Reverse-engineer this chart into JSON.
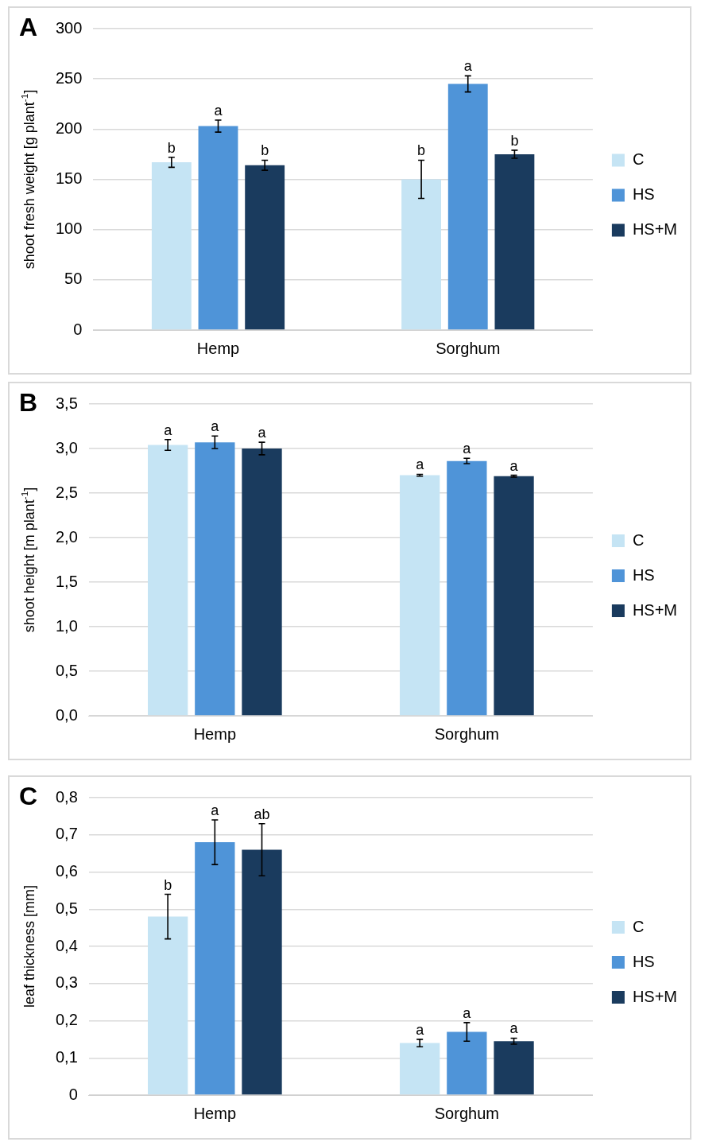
{
  "chart_data": [
    {
      "type": "bar",
      "title": "A",
      "ylabel": "shoot fresh weight [g plant$^{-1}$]",
      "categories": [
        "Hemp",
        "Sorghum"
      ],
      "ylim": [
        0,
        300
      ],
      "yticks": [
        0,
        50,
        100,
        150,
        200,
        250,
        300
      ],
      "grid": "y",
      "legend": "right",
      "series": [
        {
          "name": "C",
          "color": "#c5e4f4",
          "values": [
            167,
            150
          ],
          "errors": [
            5,
            19
          ],
          "value_labels": [
            "b",
            "b"
          ]
        },
        {
          "name": "HS",
          "color": "#4f94d8",
          "values": [
            203,
            245
          ],
          "errors": [
            6,
            8
          ],
          "value_labels": [
            "a",
            "a"
          ]
        },
        {
          "name": "HS+M",
          "color": "#1a3b5e",
          "values": [
            164,
            175
          ],
          "errors": [
            5,
            4
          ],
          "value_labels": [
            "b",
            "b"
          ]
        }
      ]
    },
    {
      "type": "bar",
      "title": "B",
      "ylabel": "shoot height [m plant$^{-1}$]",
      "categories": [
        "Hemp",
        "Sorghum"
      ],
      "ylim": [
        0,
        3.5
      ],
      "yticks": [
        {
          "value": 0,
          "label": "0,0"
        },
        {
          "value": 0.5,
          "label": "0,5"
        },
        {
          "value": 1,
          "label": "1,0"
        },
        {
          "value": 1.5,
          "label": "1,5"
        },
        {
          "value": 2,
          "label": "2,0"
        },
        {
          "value": 2.5,
          "label": "2,5"
        },
        {
          "value": 3,
          "label": "3,0"
        },
        {
          "value": 3.5,
          "label": "3,5"
        }
      ],
      "grid": "y",
      "legend": "right",
      "series": [
        {
          "name": "C",
          "color": "#c5e4f4",
          "values": [
            3.04,
            2.7
          ],
          "errors": [
            0.06,
            0.01
          ],
          "value_labels": [
            "a",
            "a"
          ]
        },
        {
          "name": "HS",
          "color": "#4f94d8",
          "values": [
            3.07,
            2.86
          ],
          "errors": [
            0.07,
            0.03
          ],
          "value_labels": [
            "a",
            "a"
          ]
        },
        {
          "name": "HS+M",
          "color": "#1a3b5e",
          "values": [
            3.0,
            2.69
          ],
          "errors": [
            0.07,
            0.01
          ],
          "value_labels": [
            "a",
            "a"
          ]
        }
      ]
    },
    {
      "type": "bar",
      "title": "C",
      "ylabel": "leaf thickness [mm]",
      "categories": [
        "Hemp",
        "Sorghum"
      ],
      "ylim": [
        0,
        0.8
      ],
      "yticks": [
        0,
        {
          "value": 0.1,
          "label": "0,1"
        },
        {
          "value": 0.2,
          "label": "0,2"
        },
        {
          "value": 0.3,
          "label": "0,3"
        },
        {
          "value": 0.4,
          "label": "0,4"
        },
        {
          "value": 0.5,
          "label": "0,5"
        },
        {
          "value": 0.6,
          "label": "0,6"
        },
        {
          "value": 0.7,
          "label": "0,7"
        },
        {
          "value": 0.8,
          "label": "0,8"
        }
      ],
      "grid": "y",
      "legend": "right",
      "series": [
        {
          "name": "C",
          "color": "#c5e4f4",
          "values": [
            0.48,
            0.14
          ],
          "errors": [
            0.06,
            0.01
          ],
          "value_labels": [
            "b",
            "a"
          ]
        },
        {
          "name": "HS",
          "color": "#4f94d8",
          "values": [
            0.68,
            0.17
          ],
          "errors": [
            0.06,
            0.025
          ],
          "value_labels": [
            "a",
            "a"
          ]
        },
        {
          "name": "HS+M",
          "color": "#1a3b5e",
          "values": [
            0.66,
            0.145
          ],
          "errors": [
            0.07,
            0.008
          ],
          "value_labels": [
            "ab",
            "a"
          ]
        }
      ]
    }
  ]
}
